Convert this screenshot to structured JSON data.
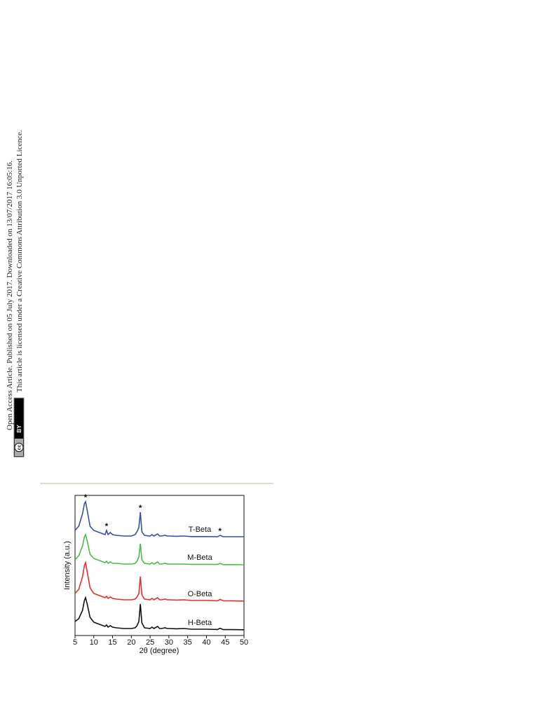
{
  "side_text": [
    "Open Access Article. Published on 05 July 2017. Downloaded on 13/07/2017 16:05:16.",
    "This article is licensed under a Creative Commons Attribution 3.0 Unported Licence."
  ],
  "badge": [
    "cc",
    "BY"
  ],
  "chart_data": {
    "type": "line",
    "xlabel": "2θ (degree)",
    "ylabel": "Intensity (a.u.)",
    "xlim": [
      5,
      50
    ],
    "xticks": [
      5,
      10,
      15,
      20,
      25,
      30,
      35,
      40,
      45,
      50
    ],
    "ylim": [
      0,
      100
    ],
    "x": [
      5,
      6,
      7,
      7.5,
      7.8,
      8.2,
      9,
      10,
      11,
      12,
      13,
      13.4,
      13.8,
      14.4,
      15,
      16,
      18,
      20,
      21,
      21.5,
      22,
      22.4,
      22.8,
      23.5,
      25,
      25.5,
      26,
      27,
      27.5,
      28,
      29,
      29.5,
      30,
      32,
      34,
      36,
      40,
      43,
      43.6,
      44.5,
      47,
      50
    ],
    "series": [
      {
        "name": "H-Beta",
        "color": "#111111",
        "values": [
          10,
          12,
          18,
          25,
          27,
          23,
          13,
          9.5,
          8.5,
          7.5,
          6.5,
          7.5,
          6,
          7,
          6,
          5.5,
          5,
          5,
          5.5,
          7,
          10,
          22.5,
          9,
          5.5,
          5,
          6,
          5,
          6.5,
          5,
          5,
          5.5,
          5,
          5,
          4.8,
          5,
          4.5,
          4.5,
          4.3,
          5.2,
          4.2,
          4.2,
          4.1
        ]
      },
      {
        "name": "O-Beta",
        "color": "#e03030",
        "values": [
          30,
          33,
          42,
          50,
          52,
          46,
          34,
          30,
          29,
          28,
          27,
          28,
          26.5,
          27.5,
          26.5,
          26,
          25.5,
          25.5,
          26,
          27.5,
          30,
          42,
          29,
          26,
          25.5,
          26.5,
          25.5,
          27,
          25.5,
          25.5,
          26,
          25.5,
          25.5,
          25.3,
          25.5,
          25,
          25,
          24.8,
          25.8,
          24.8,
          24.7,
          24.6
        ]
      },
      {
        "name": "M-Beta",
        "color": "#4cbb4c",
        "values": [
          54,
          57,
          64,
          70.5,
          72,
          68,
          58,
          55,
          54,
          53,
          52,
          53,
          51.5,
          52.5,
          51.5,
          51.5,
          51,
          51,
          51.5,
          53,
          56,
          65.5,
          54,
          51.5,
          51,
          52,
          51,
          52.5,
          51,
          51,
          51.5,
          51,
          51,
          51,
          51,
          50.8,
          50.8,
          50.7,
          51.5,
          50.6,
          50.6,
          50.5
        ]
      },
      {
        "name": "T-Beta",
        "color": "#3a4fa0",
        "values": [
          75,
          78,
          87,
          94,
          95.5,
          90,
          78,
          75,
          74,
          73,
          72,
          75,
          72,
          73.5,
          72,
          71.5,
          71,
          71,
          72,
          74,
          77,
          88,
          74,
          71.5,
          71,
          72,
          71,
          72.5,
          71,
          71,
          71.5,
          71,
          71,
          70.8,
          71,
          70.6,
          70.6,
          70.5,
          71.5,
          70.5,
          70.5,
          70.5
        ]
      }
    ],
    "annotations": [
      {
        "text": "*",
        "x": 7.8
      },
      {
        "text": "*",
        "x": 13.4
      },
      {
        "text": "*",
        "x": 22.4
      },
      {
        "text": "*",
        "x": 43.6
      }
    ]
  }
}
